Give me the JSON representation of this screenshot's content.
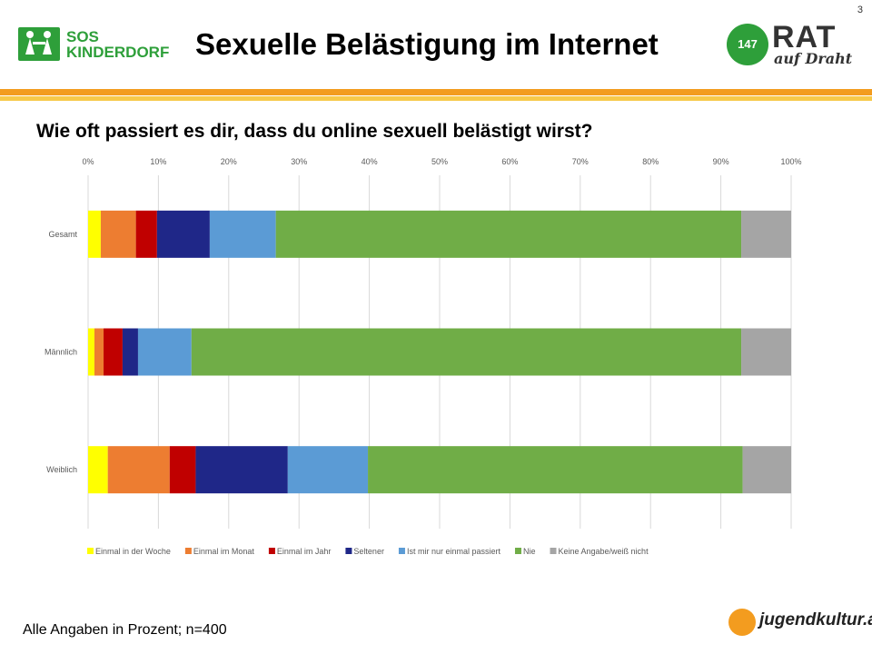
{
  "page_number": "3",
  "brand": {
    "sos_line1": "SOS",
    "sos_line2": "KINDERDORF",
    "rat_number": "147",
    "rat_big": "RAT",
    "rat_small": "auf Draht",
    "jugendkultur": "jugendkultur.at"
  },
  "header": {
    "title": "Sexuelle Belästigung im Internet"
  },
  "question": "Wie oft passiert es dir, dass du online sexuell belästigt wirst?",
  "footnote": "Alle Angaben in Prozent; n=400",
  "chart_data": {
    "type": "bar",
    "orientation": "horizontal",
    "stacked": true,
    "title": "Wie oft passiert es dir, dass du online sexuell belästigt wirst?",
    "categories": [
      "Gesamt",
      "Männlich",
      "Weiblich"
    ],
    "xlim": [
      0,
      100
    ],
    "x_ticks": [
      "0%",
      "10%",
      "20%",
      "30%",
      "40%",
      "50%",
      "60%",
      "70%",
      "80%",
      "90%",
      "100%"
    ],
    "grid": true,
    "legend_position": "bottom",
    "series": [
      {
        "name": "Einmal in der Woche",
        "color": "#ffff00",
        "values": [
          1.8,
          0.9,
          2.8
        ]
      },
      {
        "name": "Einmal im Monat",
        "color": "#ed7d31",
        "values": [
          5.0,
          1.3,
          8.8
        ]
      },
      {
        "name": "Einmal im Jahr",
        "color": "#c00000",
        "values": [
          3.0,
          2.7,
          3.7
        ]
      },
      {
        "name": "Seltener",
        "color": "#1f2788",
        "values": [
          7.5,
          2.2,
          13.1
        ]
      },
      {
        "name": "Ist mir nur einmal passiert",
        "color": "#5b9bd5",
        "values": [
          9.4,
          7.6,
          11.4
        ]
      },
      {
        "name": "Nie",
        "color": "#70ad47",
        "values": [
          66.2,
          78.2,
          53.3
        ]
      },
      {
        "name": "Keine Angabe/weiß nicht",
        "color": "#a5a5a5",
        "values": [
          7.1,
          7.1,
          6.9
        ]
      }
    ]
  }
}
